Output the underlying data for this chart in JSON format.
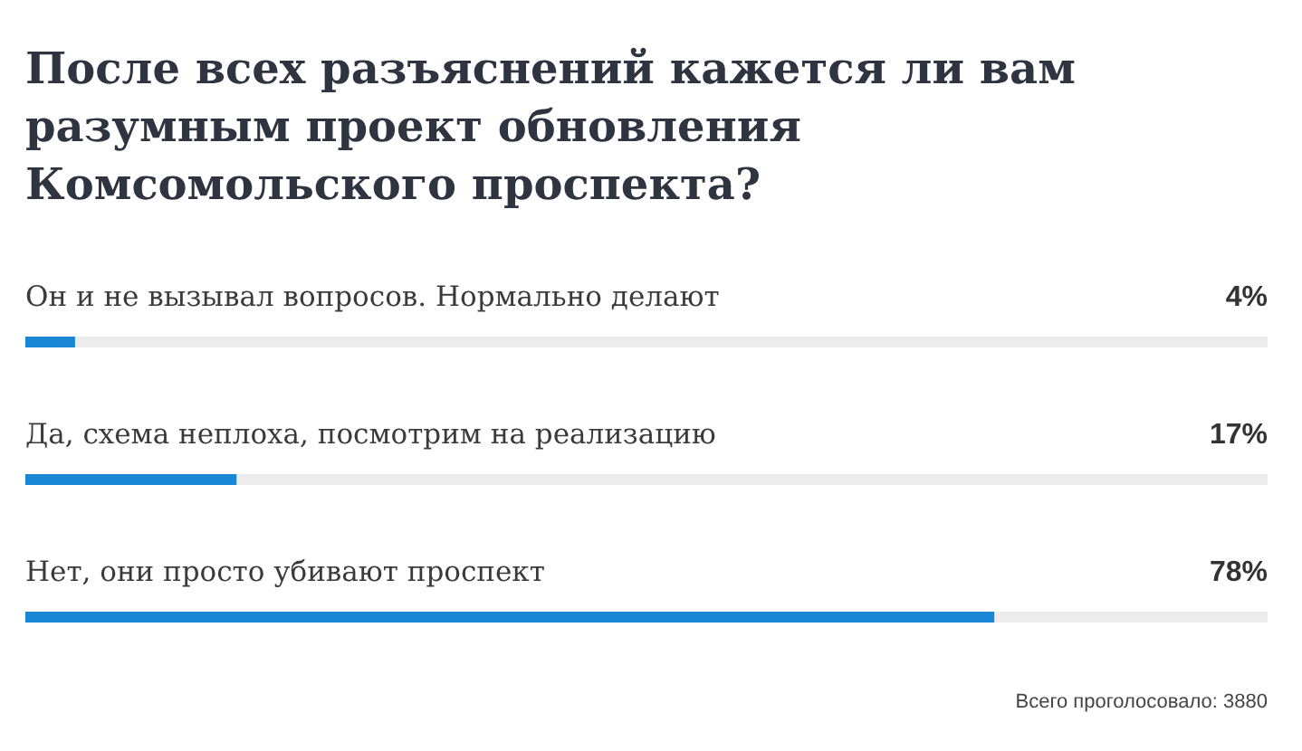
{
  "chart_data": {
    "type": "bar",
    "orientation": "horizontal",
    "title": "После всех разъяснений кажется ли вам разумным проект обновления Комсомольского проспекта?",
    "categories": [
      "Он и не вызывал вопросов. Нормально делают",
      "Да, схема неплоха, посмотрим на реализацию",
      "Нет, они просто убивают проспект"
    ],
    "values": [
      4,
      17,
      78
    ],
    "value_labels": [
      "4%",
      "17%",
      "78%"
    ],
    "color": "#1a86d6",
    "xlim": [
      0,
      100
    ],
    "tick_labels": "y",
    "annotations": [
      "Всего проголосовало: 3880"
    ]
  }
}
